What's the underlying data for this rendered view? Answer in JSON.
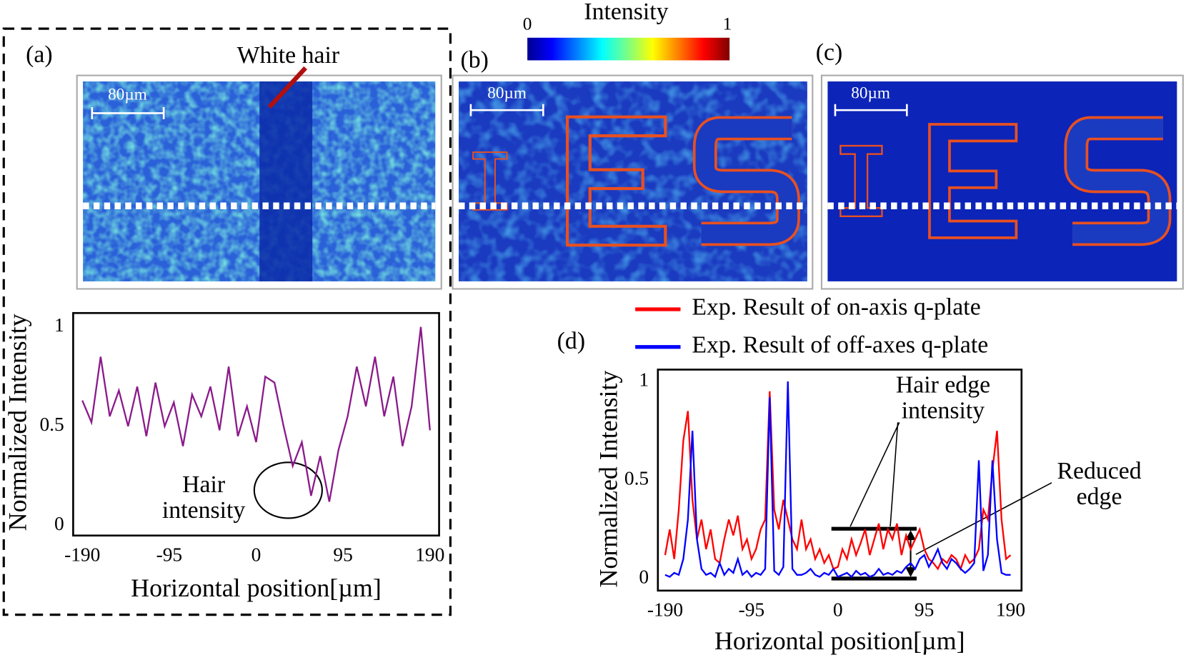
{
  "colorbar": {
    "title": "Intensity",
    "ticks": [
      0,
      1
    ]
  },
  "panels": [
    {
      "label": "(a)",
      "scale_bar": "80µm",
      "annotation": "White hair"
    },
    {
      "label": "(b)",
      "scale_bar": "80µm"
    },
    {
      "label": "(c)",
      "scale_bar": "80µm"
    }
  ],
  "chart_data": [
    {
      "type": "line",
      "ylabel": "Normalized Intensity",
      "xlabel": "Horizontal position[µm]",
      "xlim": [
        -200,
        200
      ],
      "xticks": [
        -190,
        -95,
        0,
        95,
        190
      ],
      "ylim": [
        -0.05,
        1.07
      ],
      "yticks": [
        0,
        0.5,
        1
      ],
      "annotation": [
        "Hair",
        "intensity"
      ],
      "x": [
        -190,
        -180,
        -170,
        -160,
        -150,
        -140,
        -130,
        -120,
        -110,
        -100,
        -90,
        -80,
        -70,
        -60,
        -50,
        -40,
        -30,
        -20,
        -10,
        0,
        10,
        20,
        30,
        40,
        50,
        60,
        70,
        80,
        90,
        100,
        110,
        120,
        130,
        140,
        150,
        160,
        170,
        180,
        190
      ],
      "series": [
        {
          "color": "#8b1a8b",
          "values": [
            0.63,
            0.52,
            0.85,
            0.55,
            0.68,
            0.5,
            0.7,
            0.45,
            0.72,
            0.5,
            0.62,
            0.4,
            0.66,
            0.55,
            0.7,
            0.48,
            0.8,
            0.45,
            0.6,
            0.42,
            0.75,
            0.72,
            0.5,
            0.3,
            0.42,
            0.15,
            0.35,
            0.12,
            0.38,
            0.55,
            0.8,
            0.6,
            0.85,
            0.55,
            0.75,
            0.4,
            0.6,
            1.0,
            0.48
          ]
        }
      ]
    },
    {
      "type": "line",
      "label": "(d)",
      "ylabel": "Normalized Intensity",
      "xlabel": "Horizontal position[µm]",
      "xlim": [
        -198,
        202
      ],
      "xticks": [
        -190,
        -95,
        0,
        95,
        190
      ],
      "ylim": [
        -0.06,
        1.06
      ],
      "yticks": [
        0,
        0.5,
        1
      ],
      "annotations": [
        [
          "Hair edge",
          "intensity"
        ],
        [
          "Reduced",
          "edge"
        ]
      ],
      "x": [
        -190,
        -185,
        -180,
        -175,
        -170,
        -165,
        -160,
        -155,
        -150,
        -145,
        -140,
        -135,
        -130,
        -125,
        -120,
        -115,
        -110,
        -105,
        -100,
        -95,
        -90,
        -85,
        -80,
        -75,
        -70,
        -65,
        -60,
        -55,
        -50,
        -45,
        -40,
        -35,
        -30,
        -25,
        -20,
        -15,
        -10,
        -5,
        0,
        5,
        10,
        15,
        20,
        25,
        30,
        35,
        40,
        45,
        50,
        55,
        60,
        65,
        70,
        75,
        80,
        85,
        90,
        95,
        100,
        105,
        110,
        115,
        120,
        125,
        130,
        135,
        140,
        145,
        150,
        155,
        160,
        165,
        170,
        175,
        180,
        185,
        190
      ],
      "series": [
        {
          "name": "Exp. Result of on-axis q-plate",
          "color": "#ff0000",
          "values": [
            0.12,
            0.25,
            0.1,
            0.35,
            0.7,
            0.85,
            0.4,
            0.2,
            0.3,
            0.15,
            0.25,
            0.1,
            0.08,
            0.2,
            0.3,
            0.22,
            0.32,
            0.15,
            0.2,
            0.1,
            0.15,
            0.25,
            0.3,
            0.95,
            0.35,
            0.25,
            0.4,
            0.3,
            0.2,
            0.15,
            0.3,
            0.15,
            0.2,
            0.1,
            0.15,
            0.08,
            0.12,
            0.05,
            0.06,
            0.15,
            0.1,
            0.2,
            0.12,
            0.18,
            0.25,
            0.12,
            0.2,
            0.28,
            0.15,
            0.25,
            0.2,
            0.28,
            0.12,
            0.22,
            0.15,
            0.2,
            0.25,
            0.15,
            0.1,
            0.08,
            0.05,
            0.1,
            0.08,
            0.12,
            0.1,
            0.05,
            0.12,
            0.08,
            0.1,
            0.15,
            0.35,
            0.3,
            0.55,
            0.75,
            0.3,
            0.1,
            0.12
          ]
        },
        {
          "name": "Exp. Result of off-axes q-plate",
          "color": "#0000ff",
          "values": [
            0.02,
            0.01,
            0.03,
            0.02,
            0.1,
            0.3,
            0.75,
            0.2,
            0.05,
            0.02,
            0.03,
            0.01,
            0.08,
            0.02,
            0.05,
            0.03,
            0.1,
            0.02,
            0.04,
            0.01,
            0.03,
            0.02,
            0.05,
            0.92,
            0.04,
            0.02,
            0.06,
            1.0,
            0.05,
            0.02,
            0.02,
            0.03,
            0.05,
            0.02,
            0.01,
            0.03,
            0.02,
            0.05,
            0.01,
            0.02,
            0.03,
            0.01,
            0.04,
            0.02,
            0.03,
            0.01,
            0.02,
            0.05,
            0.02,
            0.03,
            0.02,
            0.04,
            0.03,
            0.06,
            0.08,
            0.05,
            0.1,
            0.12,
            0.06,
            0.1,
            0.15,
            0.08,
            0.05,
            0.1,
            0.08,
            0.05,
            0.03,
            0.05,
            0.08,
            0.6,
            0.04,
            0.12,
            0.6,
            0.2,
            0.03,
            0.02,
            0.02
          ]
        }
      ]
    }
  ]
}
